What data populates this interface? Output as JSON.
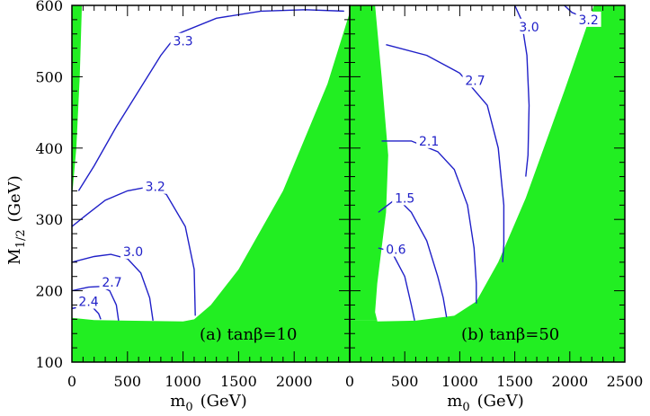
{
  "chart_data": {
    "type": "contour",
    "colors": {
      "excluded": "#22ee22",
      "contour": "#2020c8",
      "frame": "#000000"
    },
    "y_axis": {
      "range": [
        100,
        600
      ],
      "ticks": [
        100,
        200,
        300,
        400,
        500,
        600
      ],
      "tick_labels": [
        "100",
        "200",
        "300",
        "400",
        "500",
        "600"
      ],
      "title_main": "M",
      "title_sub": "1/2",
      "title_unit": "(GeV)"
    },
    "panels": [
      {
        "id": "a",
        "label": "(a) tanβ=10",
        "x_range": [
          0,
          2500
        ],
        "x_ticks": [
          0,
          500,
          1000,
          1500,
          2000
        ],
        "x_tick_labels": [
          "0",
          "500",
          "1000",
          "1500",
          "2000"
        ],
        "x_title_main": "m",
        "x_title_sub": "0",
        "x_title_unit": "(GeV)",
        "excluded_regions": [
          [
            [
              0,
              100
            ],
            [
              2500,
              100
            ],
            [
              2500,
              590
            ],
            [
              2300,
              490
            ],
            [
              1900,
              340
            ],
            [
              1500,
              230
            ],
            [
              1250,
              180
            ],
            [
              1100,
              160
            ],
            [
              1000,
              157
            ],
            [
              500,
              158
            ],
            [
              200,
              159
            ],
            [
              0,
              162
            ]
          ],
          [
            [
              0,
              600
            ],
            [
              90,
              600
            ],
            [
              70,
              500
            ],
            [
              40,
              400
            ],
            [
              0,
              330
            ]
          ]
        ],
        "contours": [
          {
            "level": "3.3",
            "label_at": [
              1000,
              550
            ],
            "points": [
              [
                60,
                340
              ],
              [
                200,
                375
              ],
              [
                400,
                430
              ],
              [
                600,
                480
              ],
              [
                800,
                530
              ],
              [
                950,
                560
              ],
              [
                1300,
                582
              ],
              [
                1700,
                592
              ],
              [
                2100,
                594
              ],
              [
                2450,
                592
              ]
            ]
          },
          {
            "level": "3.2",
            "label_at": [
              750,
              346
            ],
            "points": [
              [
                0,
                290
              ],
              [
                120,
                305
              ],
              [
                300,
                327
              ],
              [
                500,
                340
              ],
              [
                700,
                346
              ],
              [
                850,
                335
              ],
              [
                1020,
                290
              ],
              [
                1100,
                230
              ],
              [
                1110,
                165
              ]
            ]
          },
          {
            "level": "3.0",
            "label_at": [
              550,
              255
            ],
            "points": [
              [
                0,
                240
              ],
              [
                200,
                248
              ],
              [
                350,
                251
              ],
              [
                500,
                245
              ],
              [
                620,
                225
              ],
              [
                700,
                190
              ],
              [
                730,
                158
              ]
            ]
          },
          {
            "level": "2.7",
            "label_at": [
              360,
              212
            ],
            "points": [
              [
                0,
                200
              ],
              [
                150,
                205
              ],
              [
                260,
                206
              ],
              [
                340,
                200
              ],
              [
                400,
                180
              ],
              [
                420,
                158
              ]
            ]
          },
          {
            "level": "2.4",
            "label_at": [
              150,
              185
            ],
            "points": [
              [
                0,
                175
              ],
              [
                90,
                178
              ],
              [
                180,
                178
              ],
              [
                240,
                168
              ],
              [
                260,
                160
              ]
            ]
          }
        ]
      },
      {
        "id": "b",
        "label": "(b) tanβ=50",
        "x_range": [
          0,
          2500
        ],
        "x_ticks": [
          0,
          500,
          1000,
          1500,
          2000,
          2500
        ],
        "x_tick_labels": [
          "0",
          "500",
          "1000",
          "1500",
          "2000",
          "2500"
        ],
        "x_title_main": "m",
        "x_title_sub": "0",
        "x_title_unit": "(GeV)",
        "excluded_regions": [
          [
            [
              0,
              100
            ],
            [
              2500,
              100
            ],
            [
              2500,
              600
            ],
            [
              2220,
              600
            ],
            [
              1950,
              480
            ],
            [
              1600,
              330
            ],
            [
              1350,
              240
            ],
            [
              1150,
              185
            ],
            [
              950,
              165
            ],
            [
              600,
              158
            ],
            [
              250,
              157
            ],
            [
              250,
              158
            ],
            [
              0,
              158
            ]
          ],
          [
            [
              0,
              600
            ],
            [
              230,
              600
            ],
            [
              290,
              500
            ],
            [
              350,
              390
            ],
            [
              330,
              310
            ],
            [
              290,
              260
            ],
            [
              250,
              210
            ],
            [
              230,
              170
            ],
            [
              250,
              158
            ],
            [
              0,
              158
            ]
          ]
        ],
        "contours": [
          {
            "level": "3.2",
            "label_at": [
              2170,
              580
            ],
            "points": [
              [
                1950,
                600
              ],
              [
                2020,
                590
              ],
              [
                2100,
                585
              ],
              [
                2220,
                590
              ]
            ]
          },
          {
            "level": "3.0",
            "label_at": [
              1630,
              570
            ],
            "points": [
              [
                1500,
                600
              ],
              [
                1560,
                580
              ],
              [
                1610,
                530
              ],
              [
                1630,
                460
              ],
              [
                1620,
                390
              ],
              [
                1600,
                360
              ]
            ]
          },
          {
            "level": "2.7",
            "label_at": [
              1140,
              495
            ],
            "points": [
              [
                330,
                545
              ],
              [
                700,
                530
              ],
              [
                1000,
                505
              ],
              [
                1250,
                460
              ],
              [
                1350,
                400
              ],
              [
                1400,
                320
              ],
              [
                1400,
                265
              ],
              [
                1390,
                240
              ]
            ]
          },
          {
            "level": "2.1",
            "label_at": [
              720,
              410
            ],
            "points": [
              [
                290,
                410
              ],
              [
                560,
                410
              ],
              [
                800,
                395
              ],
              [
                950,
                370
              ],
              [
                1070,
                320
              ],
              [
                1130,
                260
              ],
              [
                1150,
                210
              ],
              [
                1150,
                182
              ]
            ]
          },
          {
            "level": "1.5",
            "label_at": [
              500,
              330
            ],
            "points": [
              [
                260,
                310
              ],
              [
                430,
                330
              ],
              [
                560,
                310
              ],
              [
                700,
                270
              ],
              [
                800,
                220
              ],
              [
                850,
                190
              ],
              [
                880,
                163
              ]
            ]
          },
          {
            "level": "0.6",
            "label_at": [
              420,
              258
            ],
            "points": [
              [
                260,
                260
              ],
              [
                380,
                255
              ],
              [
                500,
                220
              ],
              [
                560,
                180
              ],
              [
                590,
                158
              ]
            ]
          }
        ]
      }
    ]
  }
}
